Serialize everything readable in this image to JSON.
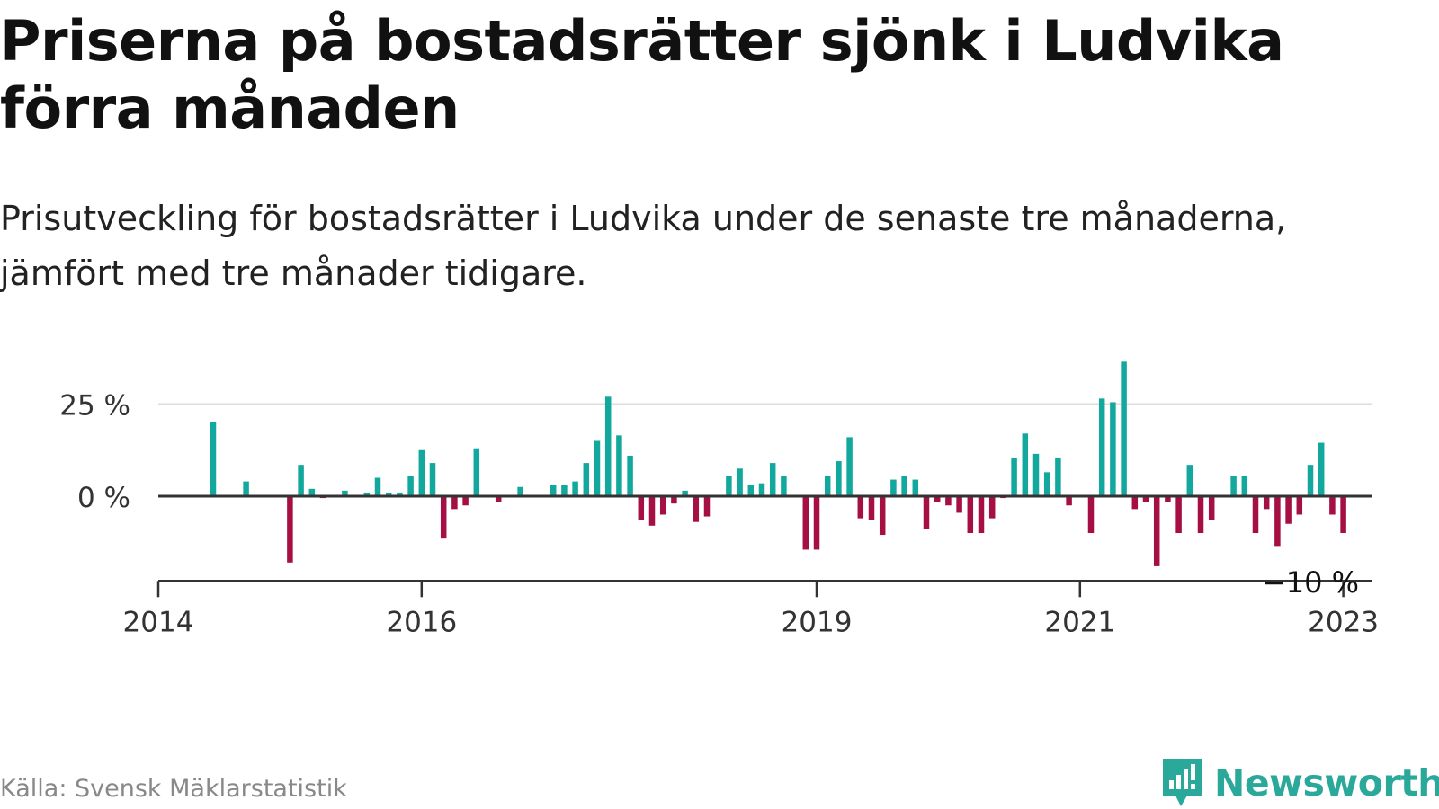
{
  "title": "Priserna på bostadsrätter sjönk i Ludvika förra månaden",
  "subtitle": "Prisutveckling för bostadsrätter i Ludvika under de senaste tre månaderna, jämfört med tre månader tidigare.",
  "source": "Källa: Svensk Mäklarstatistik",
  "brand": {
    "name": "Newsworthy",
    "color": "#2aa99b"
  },
  "colors": {
    "positive": "#13a89e",
    "negative": "#a50f44",
    "axis": "#333333",
    "grid": "#dddddd"
  },
  "chart_data": {
    "type": "bar",
    "title": "Priserna på bostadsrätter sjönk i Ludvika förra månaden",
    "subtitle": "Prisutveckling för bostadsrätter i Ludvika under de senaste tre månaderna, jämfört med tre månader tidigare.",
    "unit": "%",
    "x_start": "2014-01",
    "x_end": "2023-06",
    "x_ticks": [
      "2014",
      "2016",
      "2019",
      "2021",
      "2023"
    ],
    "y_ticks": [
      {
        "value": 25,
        "label": "25 %"
      },
      {
        "value": 0,
        "label": "0 %"
      }
    ],
    "ylim": [
      -23,
      37
    ],
    "last_label": "−10 %",
    "series": [
      {
        "values": [
          [
            "2014-06",
            20
          ],
          [
            "2014-09",
            4
          ],
          [
            "2015-01",
            -18
          ],
          [
            "2015-02",
            8.5
          ],
          [
            "2015-03",
            2
          ],
          [
            "2015-04",
            -0.5
          ],
          [
            "2015-06",
            1.5
          ],
          [
            "2015-08",
            1
          ],
          [
            "2015-09",
            5
          ],
          [
            "2015-10",
            1
          ],
          [
            "2015-11",
            1
          ],
          [
            "2015-12",
            5.5
          ],
          [
            "2016-01",
            12.5
          ],
          [
            "2016-02",
            9
          ],
          [
            "2016-03",
            -11.5
          ],
          [
            "2016-04",
            -3.5
          ],
          [
            "2016-05",
            -2.5
          ],
          [
            "2016-06",
            13
          ],
          [
            "2016-08",
            -1.5
          ],
          [
            "2016-10",
            2.5
          ],
          [
            "2017-01",
            3
          ],
          [
            "2017-02",
            3
          ],
          [
            "2017-03",
            4
          ],
          [
            "2017-04",
            9
          ],
          [
            "2017-05",
            15
          ],
          [
            "2017-06",
            27
          ],
          [
            "2017-07",
            16.5
          ],
          [
            "2017-08",
            11
          ],
          [
            "2017-09",
            -6.5
          ],
          [
            "2017-10",
            -8
          ],
          [
            "2017-11",
            -5
          ],
          [
            "2017-12",
            -2
          ],
          [
            "2018-01",
            1.5
          ],
          [
            "2018-02",
            -7
          ],
          [
            "2018-03",
            -5.5
          ],
          [
            "2018-05",
            5.5
          ],
          [
            "2018-06",
            7.5
          ],
          [
            "2018-07",
            3
          ],
          [
            "2018-08",
            3.5
          ],
          [
            "2018-09",
            9
          ],
          [
            "2018-10",
            5.5
          ],
          [
            "2018-12",
            -14.5
          ],
          [
            "2019-01",
            -14.5
          ],
          [
            "2019-02",
            5.5
          ],
          [
            "2019-03",
            9.5
          ],
          [
            "2019-04",
            16
          ],
          [
            "2019-05",
            -6
          ],
          [
            "2019-06",
            -6.5
          ],
          [
            "2019-07",
            -10.5
          ],
          [
            "2019-08",
            4.5
          ],
          [
            "2019-09",
            5.5
          ],
          [
            "2019-10",
            4.5
          ],
          [
            "2019-11",
            -9
          ],
          [
            "2019-12",
            -1.5
          ],
          [
            "2020-01",
            -2.5
          ],
          [
            "2020-02",
            -4.5
          ],
          [
            "2020-03",
            -10
          ],
          [
            "2020-04",
            -10
          ],
          [
            "2020-05",
            -6
          ],
          [
            "2020-06",
            -0.5
          ],
          [
            "2020-07",
            10.5
          ],
          [
            "2020-08",
            17
          ],
          [
            "2020-09",
            11.5
          ],
          [
            "2020-10",
            6.5
          ],
          [
            "2020-11",
            10.5
          ],
          [
            "2020-12",
            -2.5
          ],
          [
            "2021-02",
            -10
          ],
          [
            "2021-03",
            26.5
          ],
          [
            "2021-04",
            25.5
          ],
          [
            "2021-05",
            36.5
          ],
          [
            "2021-06",
            -3.5
          ],
          [
            "2021-07",
            -1.5
          ],
          [
            "2021-08",
            -19
          ],
          [
            "2021-09",
            -1.5
          ],
          [
            "2021-10",
            -10
          ],
          [
            "2021-11",
            8.5
          ],
          [
            "2021-12",
            -10
          ],
          [
            "2022-01",
            -6.5
          ],
          [
            "2022-03",
            5.5
          ],
          [
            "2022-04",
            5.5
          ],
          [
            "2022-05",
            -10
          ],
          [
            "2022-06",
            -3.5
          ],
          [
            "2022-07",
            -13.5
          ],
          [
            "2022-08",
            -7.5
          ],
          [
            "2022-09",
            -5
          ],
          [
            "2022-10",
            8.5
          ],
          [
            "2022-11",
            14.5
          ],
          [
            "2022-12",
            -5
          ],
          [
            "2023-01",
            -10
          ]
        ]
      }
    ]
  }
}
